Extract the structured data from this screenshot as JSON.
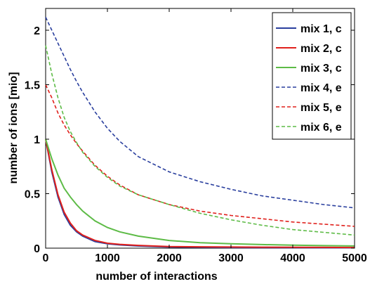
{
  "chart_data": {
    "type": "line",
    "title": "",
    "xlabel": "number of interactions",
    "ylabel": "number of ions [mio]",
    "xlim": [
      0,
      5000
    ],
    "ylim": [
      0,
      2.2
    ],
    "xticks": [
      0,
      1000,
      2000,
      3000,
      4000,
      5000
    ],
    "xtick_labels": [
      "0",
      "1000",
      "2000",
      "3000",
      "4000",
      "5000"
    ],
    "yticks": [
      0,
      0.5,
      1,
      1.5,
      2
    ],
    "ytick_labels": [
      "0",
      "0.5",
      "1",
      "1.5",
      "2"
    ],
    "grid": false,
    "legend_position": "top-right",
    "x": [
      0,
      100,
      200,
      300,
      400,
      500,
      600,
      800,
      1000,
      1200,
      1500,
      2000,
      2500,
      3000,
      3500,
      4000,
      4500,
      5000
    ],
    "series": [
      {
        "name": "mix 1, c",
        "color": "#2a3f9e",
        "style": "solid",
        "values": [
          1.0,
          0.7,
          0.47,
          0.31,
          0.21,
          0.15,
          0.11,
          0.06,
          0.04,
          0.03,
          0.02,
          0.01,
          0.008,
          0.006,
          0.005,
          0.004,
          0.003,
          0.003
        ]
      },
      {
        "name": "mix 2, c",
        "color": "#e0201c",
        "style": "solid",
        "values": [
          1.0,
          0.72,
          0.49,
          0.33,
          0.23,
          0.16,
          0.12,
          0.07,
          0.045,
          0.035,
          0.025,
          0.015,
          0.012,
          0.01,
          0.009,
          0.008,
          0.007,
          0.006
        ]
      },
      {
        "name": "mix 3, c",
        "color": "#5dbb46",
        "style": "solid",
        "values": [
          1.0,
          0.82,
          0.67,
          0.55,
          0.47,
          0.4,
          0.34,
          0.25,
          0.19,
          0.15,
          0.11,
          0.07,
          0.05,
          0.04,
          0.033,
          0.028,
          0.023,
          0.02
        ]
      },
      {
        "name": "mix 4, e",
        "color": "#2a3f9e",
        "style": "dashed",
        "values": [
          2.12,
          2.0,
          1.88,
          1.76,
          1.64,
          1.53,
          1.43,
          1.25,
          1.1,
          0.98,
          0.84,
          0.7,
          0.61,
          0.54,
          0.48,
          0.44,
          0.4,
          0.37
        ]
      },
      {
        "name": "mix 5, e",
        "color": "#e0201c",
        "style": "dashed",
        "values": [
          1.5,
          1.38,
          1.24,
          1.13,
          1.04,
          0.96,
          0.89,
          0.76,
          0.66,
          0.58,
          0.49,
          0.4,
          0.34,
          0.3,
          0.27,
          0.24,
          0.22,
          0.2
        ]
      },
      {
        "name": "mix 6, e",
        "color": "#5dbb46",
        "style": "dashed",
        "values": [
          1.86,
          1.6,
          1.38,
          1.2,
          1.07,
          0.97,
          0.88,
          0.75,
          0.65,
          0.57,
          0.49,
          0.4,
          0.32,
          0.26,
          0.21,
          0.17,
          0.145,
          0.12
        ]
      }
    ]
  }
}
